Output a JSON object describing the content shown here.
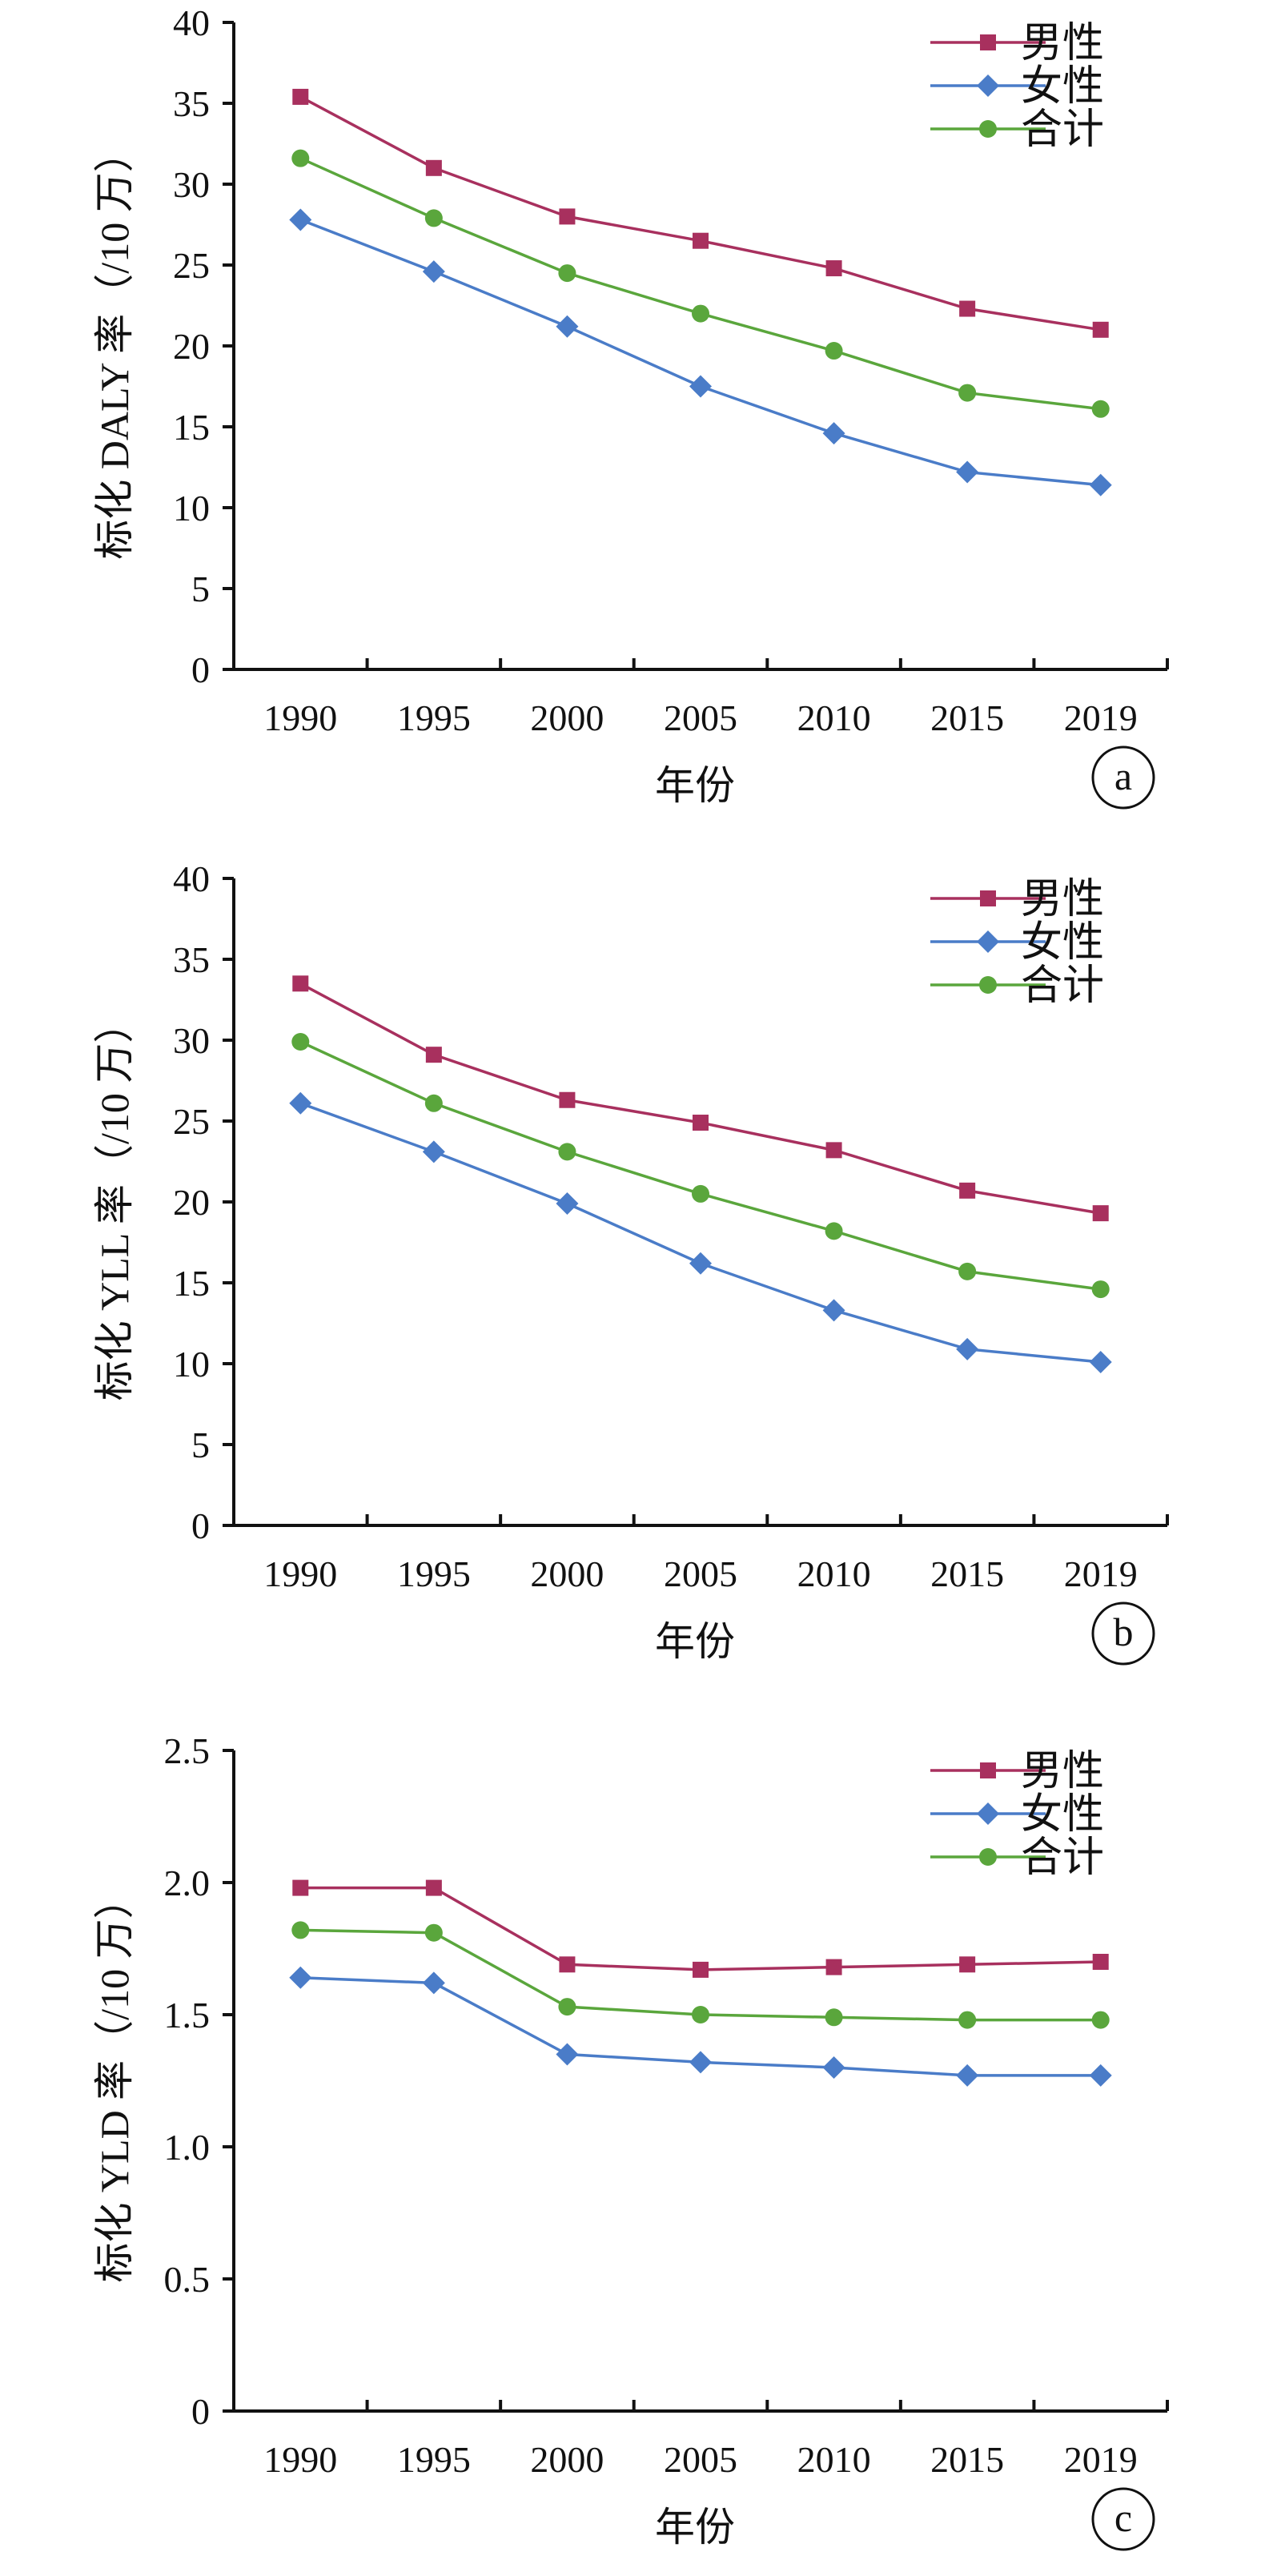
{
  "colors": {
    "male": "#a8305e",
    "female": "#4a7cc8",
    "total": "#5aa63c",
    "axis": "#111111"
  },
  "chart_data": [
    {
      "type": "line",
      "panel_label": "a",
      "xlabel": "年份",
      "ylabel": "标化 DALY 率（/10 万）",
      "x_tick_labels": [
        "1990",
        "1995",
        "2000",
        "2005",
        "2010",
        "2015",
        "2019"
      ],
      "x": [
        1990,
        1995,
        2000,
        2005,
        2010,
        2015,
        2019
      ],
      "y_ticks": [
        "0",
        "5",
        "10",
        "15",
        "20",
        "25",
        "30",
        "35",
        "40"
      ],
      "ylim": [
        0,
        40
      ],
      "legend_position": "top-right",
      "series": [
        {
          "name": "男性",
          "marker": "square",
          "color": "#a8305e",
          "values": [
            35.4,
            31.0,
            28.0,
            26.5,
            24.8,
            22.3,
            21.0
          ]
        },
        {
          "name": "女性",
          "marker": "diamond",
          "color": "#4a7cc8",
          "values": [
            27.8,
            24.6,
            21.2,
            17.5,
            14.6,
            12.2,
            11.4
          ]
        },
        {
          "name": "合计",
          "marker": "circle",
          "color": "#5aa63c",
          "values": [
            31.6,
            27.9,
            24.5,
            22.0,
            19.7,
            17.1,
            16.1
          ]
        }
      ]
    },
    {
      "type": "line",
      "panel_label": "b",
      "xlabel": "年份",
      "ylabel": "标化 YLL 率（/10 万）",
      "x_tick_labels": [
        "1990",
        "1995",
        "2000",
        "2005",
        "2010",
        "2015",
        "2019"
      ],
      "x": [
        1990,
        1995,
        2000,
        2005,
        2010,
        2015,
        2019
      ],
      "y_ticks": [
        "0",
        "5",
        "10",
        "15",
        "20",
        "25",
        "30",
        "35",
        "40"
      ],
      "ylim": [
        0,
        40
      ],
      "legend_position": "top-right",
      "series": [
        {
          "name": "男性",
          "marker": "square",
          "color": "#a8305e",
          "values": [
            33.5,
            29.1,
            26.3,
            24.9,
            23.2,
            20.7,
            19.3
          ]
        },
        {
          "name": "女性",
          "marker": "diamond",
          "color": "#4a7cc8",
          "values": [
            26.1,
            23.1,
            19.9,
            16.2,
            13.3,
            10.9,
            10.1
          ]
        },
        {
          "name": "合计",
          "marker": "circle",
          "color": "#5aa63c",
          "values": [
            29.9,
            26.1,
            23.1,
            20.5,
            18.2,
            15.7,
            14.6
          ]
        }
      ]
    },
    {
      "type": "line",
      "panel_label": "c",
      "xlabel": "年份",
      "ylabel": "标化 YLD 率（/10 万）",
      "x_tick_labels": [
        "1990",
        "1995",
        "2000",
        "2005",
        "2010",
        "2015",
        "2019"
      ],
      "x": [
        1990,
        1995,
        2000,
        2005,
        2010,
        2015,
        2019
      ],
      "y_ticks": [
        "0",
        "0.5",
        "1.0",
        "1.5",
        "2.0",
        "2.5"
      ],
      "ylim": [
        0,
        2.5
      ],
      "legend_position": "top-right",
      "series": [
        {
          "name": "男性",
          "marker": "square",
          "color": "#a8305e",
          "values": [
            1.98,
            1.98,
            1.69,
            1.67,
            1.68,
            1.69,
            1.7
          ]
        },
        {
          "name": "女性",
          "marker": "diamond",
          "color": "#4a7cc8",
          "values": [
            1.64,
            1.62,
            1.35,
            1.32,
            1.3,
            1.27,
            1.27
          ]
        },
        {
          "name": "合计",
          "marker": "circle",
          "color": "#5aa63c",
          "values": [
            1.82,
            1.81,
            1.53,
            1.5,
            1.49,
            1.48,
            1.48
          ]
        }
      ]
    }
  ]
}
